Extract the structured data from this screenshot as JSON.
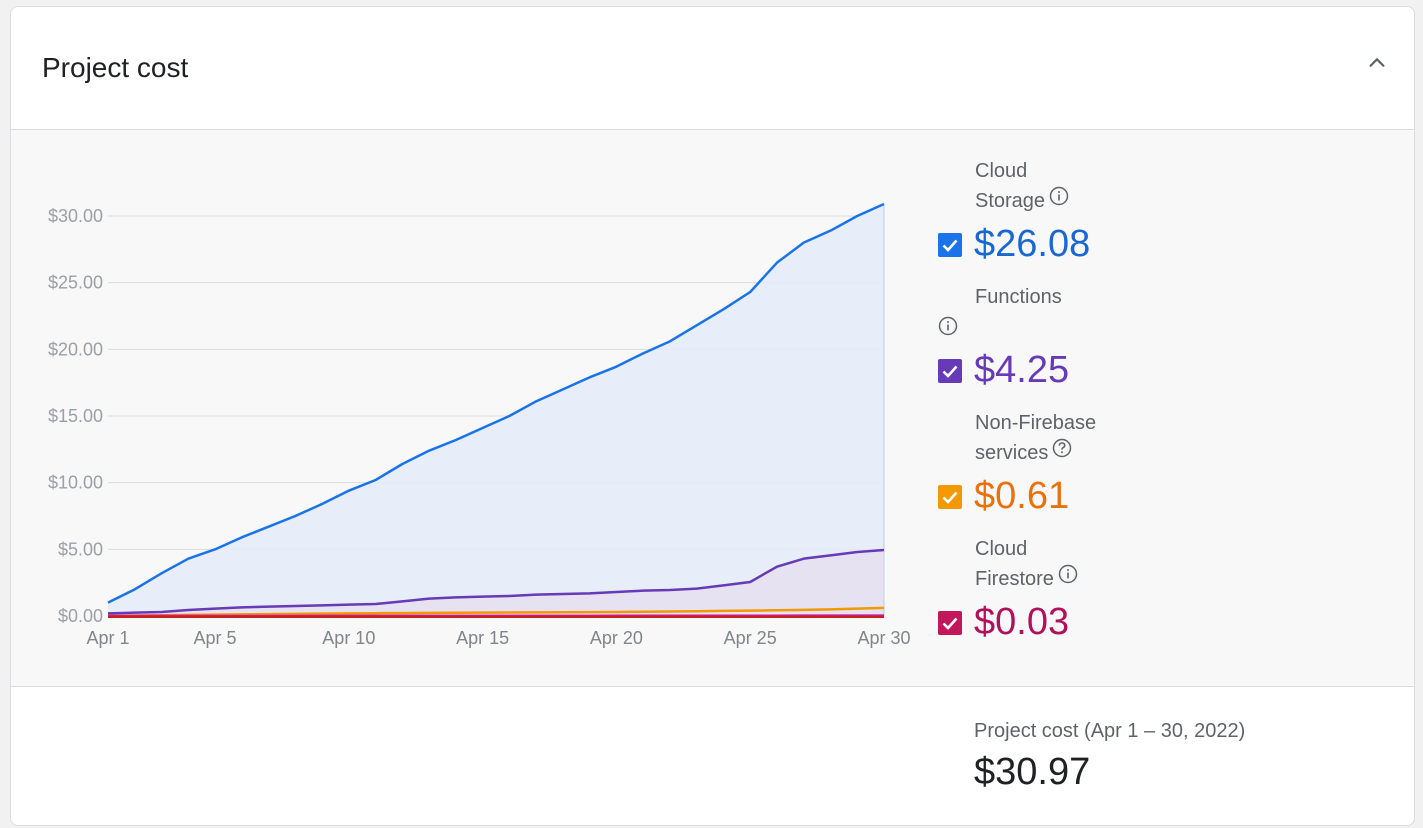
{
  "card": {
    "title": "Project cost"
  },
  "chart_data": {
    "type": "area",
    "x": [
      "Apr 1",
      "Apr 2",
      "Apr 3",
      "Apr 4",
      "Apr 5",
      "Apr 6",
      "Apr 7",
      "Apr 8",
      "Apr 9",
      "Apr 10",
      "Apr 11",
      "Apr 12",
      "Apr 13",
      "Apr 14",
      "Apr 15",
      "Apr 16",
      "Apr 17",
      "Apr 18",
      "Apr 19",
      "Apr 20",
      "Apr 21",
      "Apr 22",
      "Apr 23",
      "Apr 24",
      "Apr 25",
      "Apr 26",
      "Apr 27",
      "Apr 28",
      "Apr 29",
      "Apr 30"
    ],
    "x_ticks": [
      "Apr 1",
      "Apr 5",
      "Apr 10",
      "Apr 15",
      "Apr 20",
      "Apr 25",
      "Apr 30"
    ],
    "y_ticks": [
      "$0.00",
      "$5.00",
      "$10.00",
      "$15.00",
      "$20.00",
      "$25.00",
      "$30.00"
    ],
    "ylim": [
      0,
      30
    ],
    "grid": true,
    "series": [
      {
        "name": "Cloud Storage",
        "color": "#1a73e8",
        "fill": "#e4ebf8",
        "values": [
          1.0,
          2.0,
          3.2,
          4.3,
          5.0,
          5.9,
          6.7,
          7.5,
          8.4,
          9.4,
          10.2,
          11.4,
          12.4,
          13.2,
          14.1,
          15.0,
          16.1,
          17.0,
          17.9,
          18.7,
          19.7,
          20.6,
          21.8,
          23.0,
          24.3,
          26.5,
          28.0,
          28.9,
          30.0,
          30.9
        ]
      },
      {
        "name": "Functions",
        "color": "#673ab7",
        "fill": "#e6e0f0",
        "values": [
          0.2,
          0.25,
          0.3,
          0.45,
          0.55,
          0.65,
          0.7,
          0.75,
          0.8,
          0.85,
          0.9,
          1.1,
          1.3,
          1.4,
          1.45,
          1.5,
          1.6,
          1.65,
          1.7,
          1.8,
          1.9,
          1.95,
          2.05,
          2.3,
          2.55,
          3.7,
          4.3,
          4.55,
          4.8,
          4.95
        ]
      },
      {
        "name": "Non-Firebase services",
        "color": "#f29900",
        "values": [
          0.02,
          0.04,
          0.06,
          0.08,
          0.1,
          0.12,
          0.14,
          0.16,
          0.18,
          0.2,
          0.21,
          0.22,
          0.23,
          0.24,
          0.25,
          0.26,
          0.27,
          0.28,
          0.29,
          0.3,
          0.32,
          0.34,
          0.36,
          0.38,
          0.4,
          0.43,
          0.46,
          0.5,
          0.55,
          0.61
        ]
      },
      {
        "name": "Cloud Firestore",
        "color": "#d01884",
        "values": [
          0,
          0,
          0,
          0,
          0,
          0,
          0,
          0,
          0.01,
          0.01,
          0.01,
          0.01,
          0.01,
          0.01,
          0.01,
          0.01,
          0.01,
          0.01,
          0.01,
          0.02,
          0.02,
          0.02,
          0.02,
          0.02,
          0.02,
          0.02,
          0.03,
          0.03,
          0.03,
          0.03
        ]
      }
    ]
  },
  "legend": [
    {
      "line1": "Cloud",
      "line2": "Storage",
      "info": "info-icon",
      "value": "$26.08",
      "color": "#1967d2",
      "check_color": "#1a73e8",
      "checked": true
    },
    {
      "line1": "Functions",
      "line2": "",
      "info": "info-icon",
      "value": "$4.25",
      "color": "#673ab7",
      "check_color": "#673ab7",
      "checked": true
    },
    {
      "line1": "Non-Firebase",
      "line2": "services",
      "info": "help-icon",
      "value": "$0.61",
      "color": "#e8710a",
      "check_color": "#f29900",
      "checked": true
    },
    {
      "line1": "Cloud",
      "line2": "Firestore",
      "info": "info-icon",
      "value": "$0.03",
      "color": "#b0105c",
      "check_color": "#c2185b",
      "checked": true
    }
  ],
  "footer": {
    "label": "Project cost (Apr 1 – 30, 2022)",
    "total": "$30.97"
  },
  "icons": {
    "collapse": "chevron-up-icon"
  }
}
